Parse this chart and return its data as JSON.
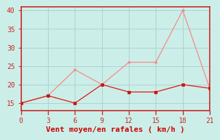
{
  "x": [
    0,
    3,
    6,
    9,
    12,
    15,
    18,
    21
  ],
  "y_rafales": [
    15,
    17,
    24,
    20,
    26,
    26,
    40,
    19
  ],
  "y_moyen": [
    15,
    17,
    15,
    20,
    18,
    18,
    20,
    19
  ],
  "line_color_rafales": "#f09090",
  "line_color_moyen": "#dd2222",
  "marker_color_rafales": "#f09090",
  "marker_color_moyen": "#cc1111",
  "bg_color": "#cceee8",
  "grid_color": "#aacccc",
  "axis_color": "#cc2222",
  "tick_color": "#cc2222",
  "xlabel": "Vent moyen/en rafales ( km/h )",
  "xlabel_color": "#cc0000",
  "xlim": [
    0,
    21
  ],
  "ylim": [
    13,
    41
  ],
  "yticks": [
    15,
    20,
    25,
    30,
    35,
    40
  ],
  "xticks": [
    0,
    3,
    6,
    9,
    12,
    15,
    18,
    21
  ],
  "label_fontsize": 8
}
